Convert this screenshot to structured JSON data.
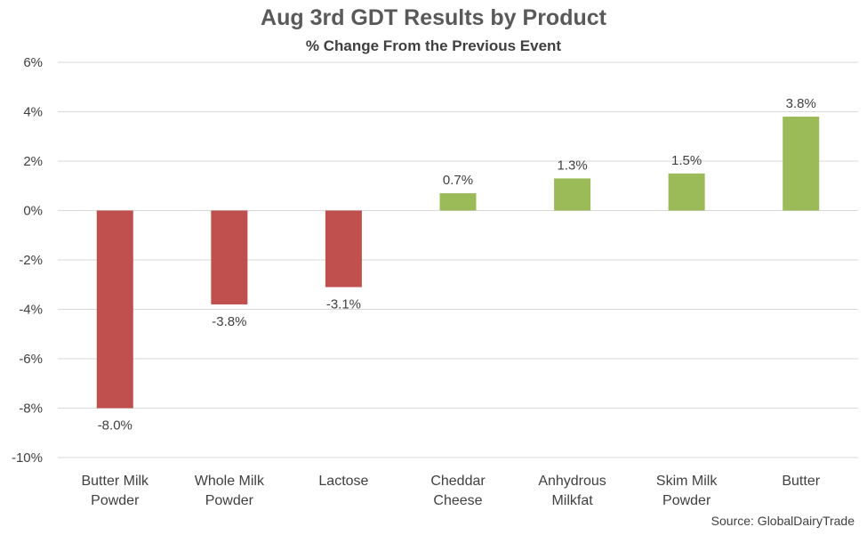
{
  "chart_data": {
    "type": "bar",
    "title": "Aug 3rd GDT Results by Product",
    "subtitle": "% Change From the Previous Event",
    "source": "Source: GlobalDairyTrade",
    "categories": [
      [
        "Butter Milk",
        "Powder"
      ],
      [
        "Whole Milk",
        "Powder"
      ],
      [
        "Lactose"
      ],
      [
        "Cheddar",
        "Cheese"
      ],
      [
        "Anhydrous",
        "Milkfat"
      ],
      [
        "Skim Milk",
        "Powder"
      ],
      [
        "Butter"
      ]
    ],
    "values": [
      -8.0,
      -3.8,
      -3.1,
      0.7,
      1.3,
      1.5,
      3.8
    ],
    "data_labels": [
      "-8.0%",
      "-3.8%",
      "-3.1%",
      "0.7%",
      "1.3%",
      "1.5%",
      "3.8%"
    ],
    "y_ticks": [
      6,
      4,
      2,
      0,
      -2,
      -4,
      -6,
      -8,
      -10
    ],
    "y_tick_labels": [
      "6%",
      "4%",
      "2%",
      "0%",
      "-2%",
      "-4%",
      "-6%",
      "-8%",
      "-10%"
    ],
    "ylim": [
      -10,
      6
    ],
    "grid": true,
    "legend": "none",
    "colors": {
      "negative": "#c0504d",
      "positive": "#9bbb59",
      "grid": "#d9d9d9",
      "text": "#404040"
    }
  }
}
